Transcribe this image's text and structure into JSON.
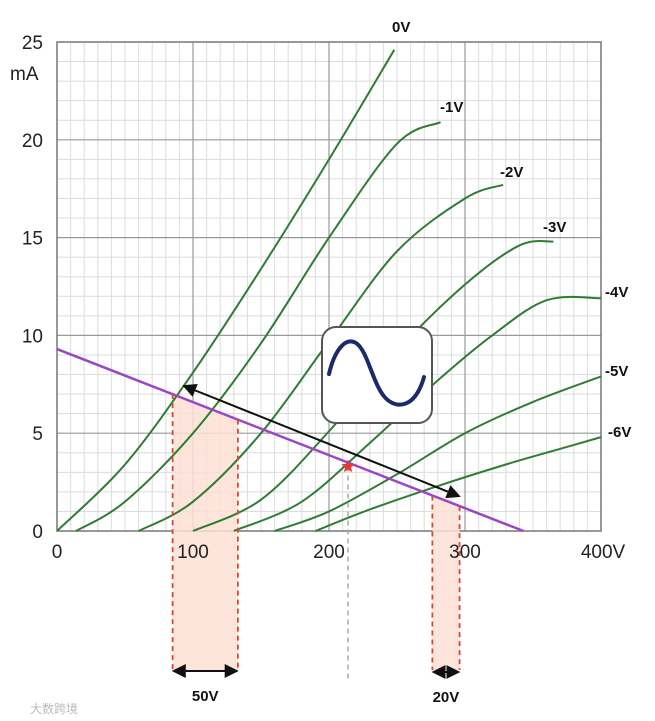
{
  "chart_data": {
    "type": "line",
    "xlabel": "",
    "ylabel": "",
    "xlim": [
      0,
      400
    ],
    "ylim": [
      0,
      25
    ],
    "x_unit_label": "400V",
    "y_unit_label": "mA",
    "x_ticks": [
      "0",
      "100",
      "200",
      "300",
      "400V"
    ],
    "y_ticks": [
      "0",
      "5",
      "10",
      "15",
      "20",
      "25"
    ],
    "grid": true,
    "series": [
      {
        "name": "0V",
        "color": "#2e7d32",
        "points": [
          [
            0,
            0
          ],
          [
            50,
            3.4
          ],
          [
            100,
            8.1
          ],
          [
            150,
            13.4
          ],
          [
            200,
            19.0
          ],
          [
            248,
            24.6
          ]
        ]
      },
      {
        "name": "-1V",
        "color": "#2e7d32",
        "points": [
          [
            14,
            0
          ],
          [
            50,
            1.5
          ],
          [
            100,
            5.0
          ],
          [
            150,
            9.6
          ],
          [
            200,
            15.0
          ],
          [
            250,
            19.8
          ],
          [
            282,
            20.9
          ]
        ]
      },
      {
        "name": "-2V",
        "color": "#2e7d32",
        "points": [
          [
            60,
            0
          ],
          [
            100,
            1.5
          ],
          [
            150,
            5.0
          ],
          [
            200,
            9.7
          ],
          [
            250,
            14.3
          ],
          [
            300,
            17.0
          ],
          [
            328,
            17.7
          ]
        ]
      },
      {
        "name": "-3V",
        "color": "#2e7d32",
        "points": [
          [
            100,
            0
          ],
          [
            150,
            1.6
          ],
          [
            200,
            5.1
          ],
          [
            250,
            9.2
          ],
          [
            300,
            12.6
          ],
          [
            340,
            14.6
          ],
          [
            365,
            14.8
          ]
        ]
      },
      {
        "name": "-4V",
        "color": "#2e7d32",
        "points": [
          [
            130,
            0
          ],
          [
            180,
            1.5
          ],
          [
            230,
            4.5
          ],
          [
            280,
            7.7
          ],
          [
            320,
            10.0
          ],
          [
            360,
            11.8
          ],
          [
            400,
            11.9
          ]
        ]
      },
      {
        "name": "-5V",
        "color": "#2e7d32",
        "points": [
          [
            160,
            0
          ],
          [
            200,
            1.0
          ],
          [
            250,
            2.9
          ],
          [
            300,
            5.0
          ],
          [
            350,
            6.6
          ],
          [
            400,
            7.9
          ]
        ]
      },
      {
        "name": "-6V",
        "color": "#2e7d32",
        "points": [
          [
            190,
            0
          ],
          [
            230,
            1.1
          ],
          [
            280,
            2.3
          ],
          [
            330,
            3.4
          ],
          [
            370,
            4.2
          ],
          [
            400,
            4.8
          ]
        ]
      }
    ],
    "load_line": {
      "color": "#9b45c9",
      "points": [
        [
          0,
          9.3
        ],
        [
          343,
          0
        ]
      ]
    },
    "operating_point": {
      "x": 214,
      "y": 3.3,
      "color": "#e53935"
    },
    "swing_arrow": {
      "from": [
        94,
        7.4
      ],
      "to": [
        295,
        1.8
      ]
    },
    "input_range": {
      "x_from": 85,
      "x_to": 133,
      "label": "50V"
    },
    "output_range": {
      "x_from": 276,
      "x_to": 296,
      "label": "20V"
    },
    "watermark": "大数跨境"
  }
}
